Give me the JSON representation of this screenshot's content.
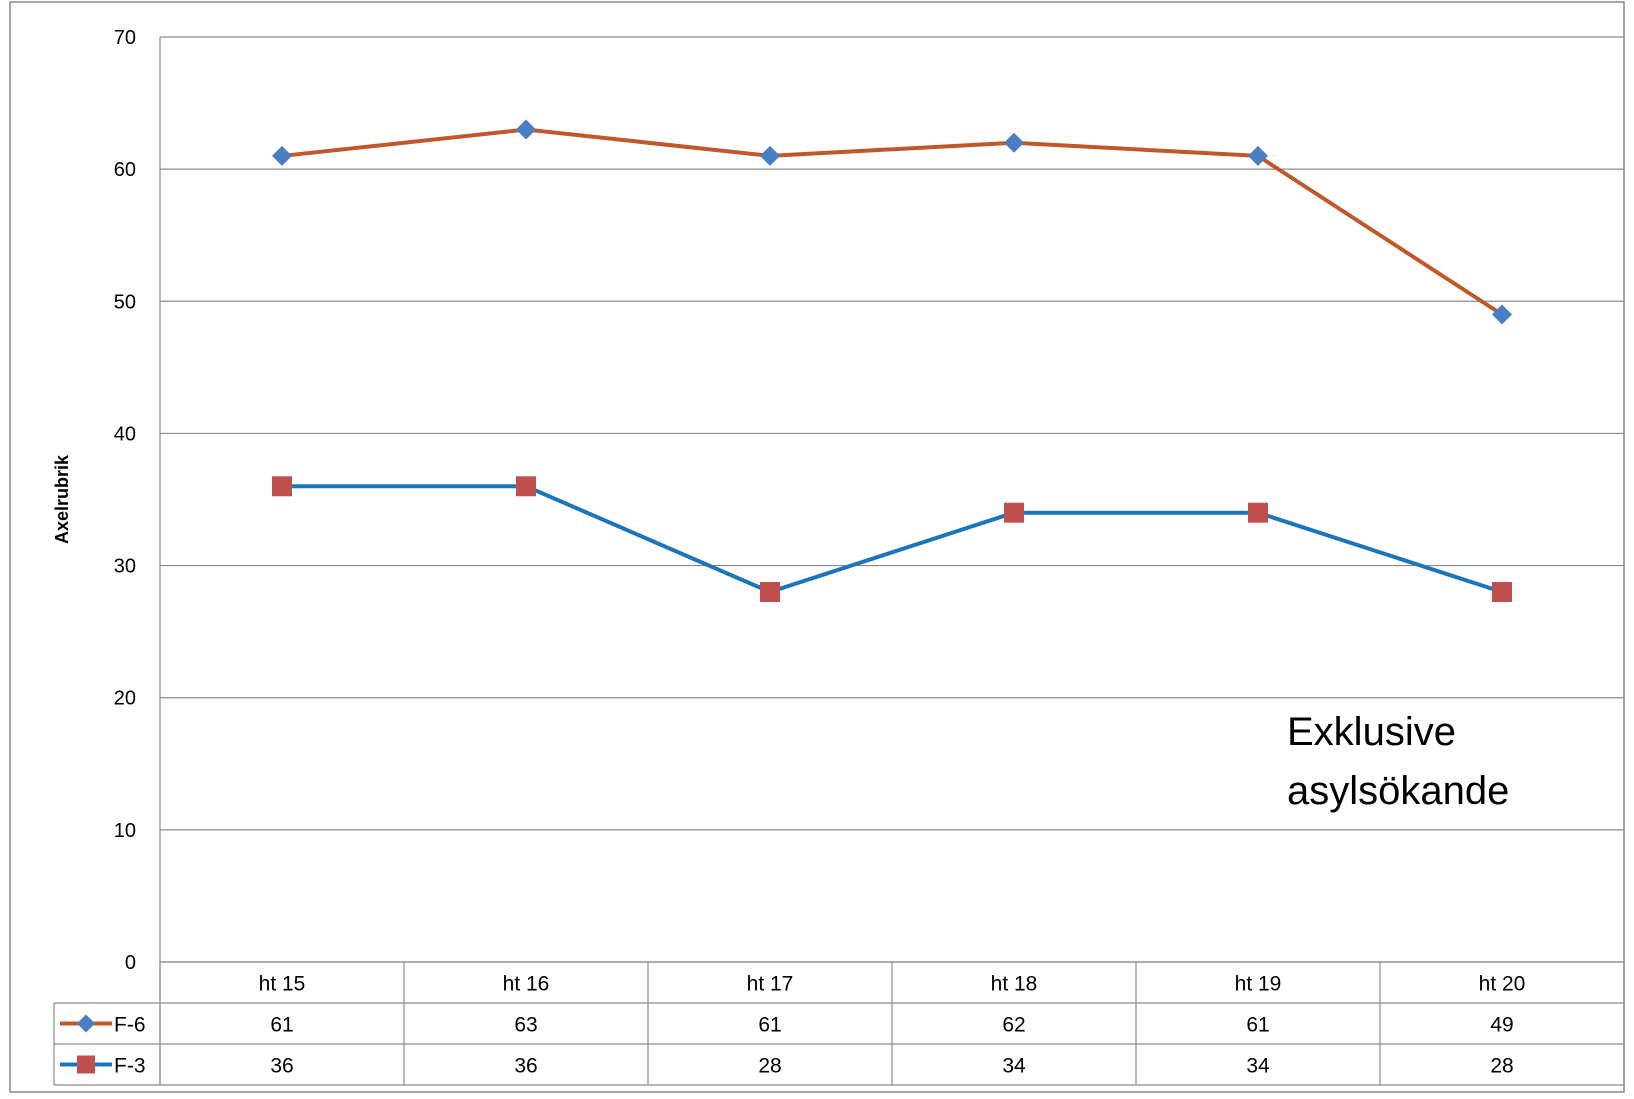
{
  "chart_data": {
    "type": "line",
    "title": "",
    "xlabel": "",
    "ylabel": "Axelrubrik",
    "ylim": [
      0,
      70
    ],
    "yticks": [
      0,
      10,
      20,
      30,
      40,
      50,
      60,
      70
    ],
    "grid": true,
    "legend": "data-table-left",
    "categories": [
      "ht 15",
      "ht 16",
      "ht 17",
      "ht 18",
      "ht 19",
      "ht 20"
    ],
    "series": [
      {
        "name": "F-6",
        "values": [
          61,
          63,
          61,
          62,
          61,
          49
        ],
        "line_color": "#C0582A",
        "marker_color": "#4A7EC2",
        "marker": "diamond"
      },
      {
        "name": "F-3",
        "values": [
          36,
          36,
          28,
          34,
          34,
          28
        ],
        "line_color": "#1B75BC",
        "marker_color": "#C0504D",
        "marker": "square"
      }
    ],
    "annotation": {
      "lines": [
        "Exklusive",
        "asylsökande"
      ]
    }
  }
}
